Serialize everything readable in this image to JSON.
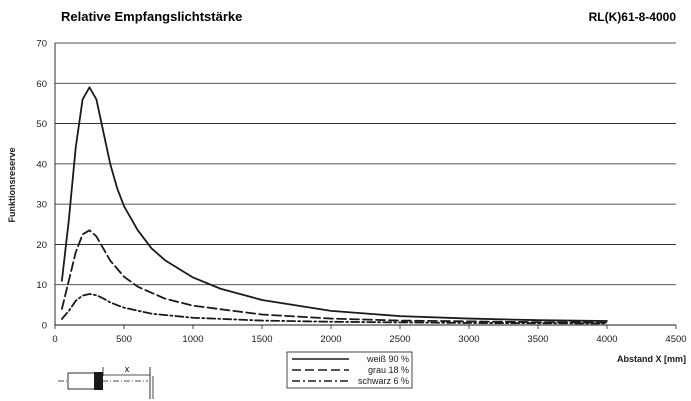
{
  "chart_data": {
    "type": "line",
    "title": "Relative Empfangslichtstärke",
    "model_code": "RL(K)61-8-4000",
    "xlabel": "Abstand X [mm]",
    "ylabel": "Funktionsreserve",
    "xlim": [
      0,
      4500
    ],
    "ylim": [
      0,
      70
    ],
    "x_ticks": [
      0,
      500,
      1000,
      1500,
      2000,
      2500,
      3000,
      3500,
      4000,
      4500
    ],
    "y_ticks": [
      0,
      10,
      20,
      30,
      40,
      50,
      60,
      70
    ],
    "grid": "horizontal",
    "legend_position": "bottom-center",
    "series": [
      {
        "name": "weiß 90 %",
        "line_style": "solid",
        "x": [
          50,
          100,
          150,
          200,
          250,
          300,
          350,
          400,
          450,
          500,
          600,
          700,
          800,
          1000,
          1200,
          1500,
          2000,
          2500,
          3000,
          3500,
          4000
        ],
        "y": [
          11,
          26,
          44,
          56,
          59,
          56,
          48,
          40,
          34,
          29.5,
          23.5,
          19,
          16,
          11.8,
          9,
          6.2,
          3.5,
          2.2,
          1.6,
          1.2,
          1
        ]
      },
      {
        "name": "grau 18 %",
        "line_style": "dashed",
        "x": [
          50,
          100,
          150,
          200,
          250,
          300,
          350,
          400,
          500,
          600,
          800,
          1000,
          1500,
          2000,
          2500,
          3000,
          3500,
          4000
        ],
        "y": [
          4,
          11,
          18,
          22.5,
          23.5,
          22,
          19,
          16,
          12,
          9.5,
          6.5,
          4.8,
          2.6,
          1.6,
          1.1,
          0.9,
          0.7,
          0.6
        ]
      },
      {
        "name": "schwarz 6 %",
        "line_style": "dash-dot",
        "x": [
          50,
          100,
          150,
          200,
          250,
          300,
          350,
          400,
          500,
          700,
          1000,
          1500,
          2000,
          3000,
          4000
        ],
        "y": [
          1.5,
          3.5,
          6,
          7.3,
          7.7,
          7.4,
          6.6,
          5.6,
          4.3,
          2.8,
          1.8,
          1.1,
          0.8,
          0.5,
          0.4
        ]
      }
    ]
  },
  "colors": {
    "line": "#1a1a1a",
    "grid": "#1a1a1a",
    "background": "#ffffff"
  },
  "diagram": {
    "x_label": "x"
  }
}
